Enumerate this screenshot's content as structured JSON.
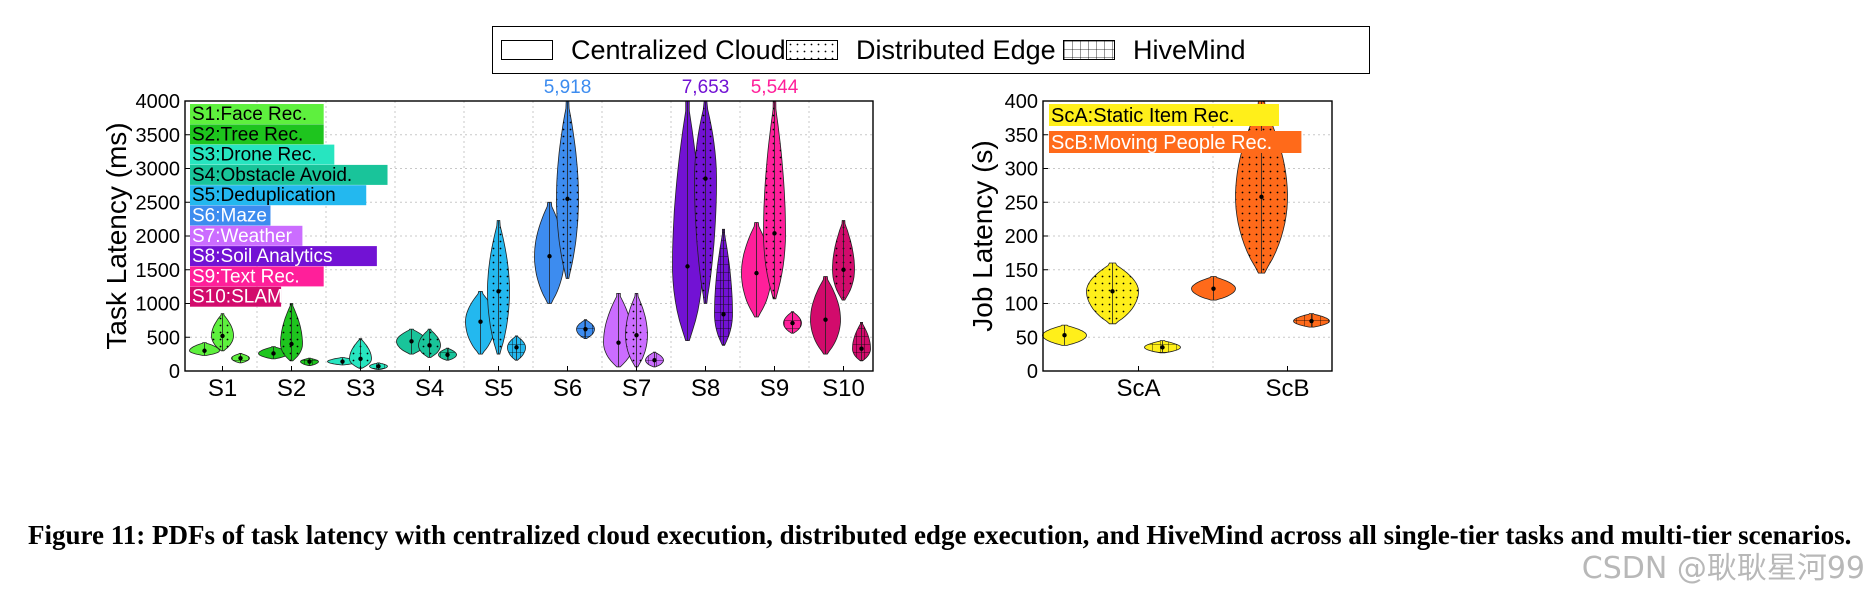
{
  "legend": [
    {
      "label": "Centralized Cloud",
      "pattern": "none"
    },
    {
      "label": "Distributed Edge",
      "pattern": "dots"
    },
    {
      "label": "HiveMind",
      "pattern": "grid"
    }
  ],
  "chart_data": [
    {
      "type": "violin",
      "ylabel": "Task Latency (ms)",
      "xlabel": "",
      "ylim": [
        0,
        4000
      ],
      "yticks": [
        "0",
        "500",
        "1000",
        "1500",
        "2000",
        "2500",
        "3000",
        "3500",
        "4000"
      ],
      "grid": true,
      "categories": [
        "S1",
        "S2",
        "S3",
        "S4",
        "S5",
        "S6",
        "S7",
        "S8",
        "S9",
        "S10"
      ],
      "category_names": [
        "S1:Face Rec.",
        "S2:Tree Rec.",
        "S3:Drone Rec.",
        "S4:Obstacle Avoid.",
        "S5:Deduplication",
        "S6:Maze",
        "S7:Weather",
        "S8:Soil Analytics",
        "S9:Text Rec.",
        "S10:SLAM"
      ],
      "colors": [
        "#5ef03e",
        "#1ec51e",
        "#27e5c0",
        "#19c49a",
        "#23b8ef",
        "#3d8cef",
        "#cb6dff",
        "#7212d4",
        "#ff1f9a",
        "#d20b6c"
      ],
      "label_text_colors": [
        "#000000",
        "#000000",
        "#000000",
        "#000000",
        "#000000",
        "#ffffff",
        "#ffffff",
        "#ffffff",
        "#ffffff",
        "#ffffff"
      ],
      "annotations": [
        {
          "text": "5,918",
          "category": "S6",
          "series": "Distributed Edge",
          "color": "#3d8cef"
        },
        {
          "text": "7,653",
          "category": "S8",
          "series": "Distributed Edge",
          "color": "#7212d4"
        },
        {
          "text": "5,544",
          "category": "S9",
          "series": "Distributed Edge",
          "color": "#ff1f9a"
        }
      ],
      "series": [
        {
          "name": "Centralized Cloud",
          "violins": [
            {
              "min": 230,
              "max": 420,
              "median": 300
            },
            {
              "min": 180,
              "max": 360,
              "median": 260
            },
            {
              "min": 90,
              "max": 200,
              "median": 140
            },
            {
              "min": 250,
              "max": 620,
              "median": 440
            },
            {
              "min": 250,
              "max": 1180,
              "median": 730
            },
            {
              "min": 1000,
              "max": 2500,
              "median": 1700
            },
            {
              "min": 60,
              "max": 1150,
              "median": 420
            },
            {
              "min": 450,
              "max": 4000,
              "median": 1550
            },
            {
              "min": 800,
              "max": 2200,
              "median": 1450
            },
            {
              "min": 250,
              "max": 1400,
              "median": 760
            }
          ]
        },
        {
          "name": "Distributed Edge",
          "violins": [
            {
              "min": 300,
              "max": 850,
              "median": 520
            },
            {
              "min": 150,
              "max": 1000,
              "median": 400
            },
            {
              "min": 40,
              "max": 480,
              "median": 180
            },
            {
              "min": 200,
              "max": 620,
              "median": 380
            },
            {
              "min": 250,
              "max": 2230,
              "median": 1180
            },
            {
              "min": 1370,
              "max": 4000,
              "median": 2550
            },
            {
              "min": 60,
              "max": 1150,
              "median": 530
            },
            {
              "min": 1000,
              "max": 4000,
              "median": 2850
            },
            {
              "min": 1070,
              "max": 4000,
              "median": 2040
            },
            {
              "min": 1050,
              "max": 2230,
              "median": 1500
            }
          ]
        },
        {
          "name": "HiveMind",
          "violins": [
            {
              "min": 120,
              "max": 260,
              "median": 190
            },
            {
              "min": 80,
              "max": 190,
              "median": 140
            },
            {
              "min": 20,
              "max": 120,
              "median": 70
            },
            {
              "min": 160,
              "max": 340,
              "median": 240
            },
            {
              "min": 160,
              "max": 520,
              "median": 350
            },
            {
              "min": 480,
              "max": 760,
              "median": 620
            },
            {
              "min": 60,
              "max": 280,
              "median": 160
            },
            {
              "min": 380,
              "max": 2100,
              "median": 840
            },
            {
              "min": 560,
              "max": 880,
              "median": 710
            },
            {
              "min": 150,
              "max": 720,
              "median": 330
            }
          ]
        }
      ]
    },
    {
      "type": "violin",
      "ylabel": "Job Latency (s)",
      "xlabel": "",
      "ylim": [
        0,
        400
      ],
      "yticks": [
        "0",
        "50",
        "100",
        "150",
        "200",
        "250",
        "300",
        "350",
        "400"
      ],
      "grid": true,
      "categories": [
        "ScA",
        "ScB"
      ],
      "category_names": [
        "ScA:Static Item Rec.",
        "ScB:Moving People Rec."
      ],
      "colors": [
        "#ffef1a",
        "#ff6a1a"
      ],
      "label_text_colors": [
        "#000000",
        "#ffffff"
      ],
      "series": [
        {
          "name": "Centralized Cloud",
          "violins": [
            {
              "min": 38,
              "max": 68,
              "median": 53
            },
            {
              "min": 105,
              "max": 140,
              "median": 122
            }
          ]
        },
        {
          "name": "Distributed Edge",
          "violins": [
            {
              "min": 70,
              "max": 160,
              "median": 118
            },
            {
              "min": 145,
              "max": 400,
              "median": 258
            }
          ]
        },
        {
          "name": "HiveMind",
          "violins": [
            {
              "min": 27,
              "max": 45,
              "median": 35
            },
            {
              "min": 65,
              "max": 85,
              "median": 74
            }
          ]
        }
      ]
    }
  ],
  "caption": "Figure 11:  PDFs of task latency with centralized cloud execution, distributed edge execution, and HiveMind across all single-tier tasks and multi-tier scenarios.",
  "watermark": "CSDN @耿耿星河99"
}
